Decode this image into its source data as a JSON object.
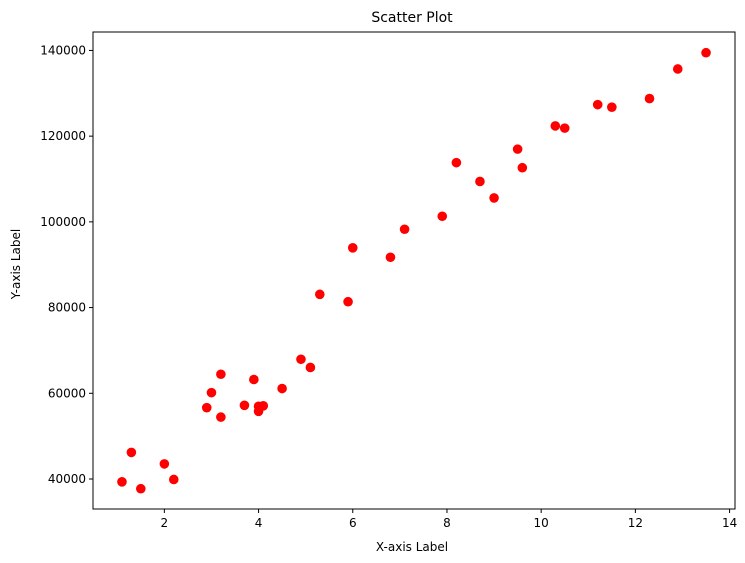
{
  "chart_data": {
    "type": "scatter",
    "title": "Scatter Plot",
    "xlabel": "X-axis Label",
    "ylabel": "Y-axis Label",
    "xlim": [
      0.485,
      14.115
    ],
    "ylim": [
      33000,
      144300
    ],
    "xticks": [
      2,
      4,
      6,
      8,
      10,
      12,
      14
    ],
    "yticks": [
      40000,
      60000,
      80000,
      100000,
      120000,
      140000
    ],
    "grid": false,
    "marker_color": "#ff0000",
    "points": [
      {
        "x": 1.1,
        "y": 39343
      },
      {
        "x": 1.3,
        "y": 46205
      },
      {
        "x": 1.5,
        "y": 37731
      },
      {
        "x": 2.0,
        "y": 43525
      },
      {
        "x": 2.2,
        "y": 39891
      },
      {
        "x": 2.9,
        "y": 56642
      },
      {
        "x": 3.0,
        "y": 60150
      },
      {
        "x": 3.2,
        "y": 54445
      },
      {
        "x": 3.2,
        "y": 64445
      },
      {
        "x": 3.7,
        "y": 57189
      },
      {
        "x": 3.9,
        "y": 63218
      },
      {
        "x": 4.0,
        "y": 55794
      },
      {
        "x": 4.0,
        "y": 56957
      },
      {
        "x": 4.1,
        "y": 57081
      },
      {
        "x": 4.5,
        "y": 61111
      },
      {
        "x": 4.9,
        "y": 67938
      },
      {
        "x": 5.1,
        "y": 66029
      },
      {
        "x": 5.3,
        "y": 83088
      },
      {
        "x": 5.9,
        "y": 81363
      },
      {
        "x": 6.0,
        "y": 93940
      },
      {
        "x": 6.8,
        "y": 91738
      },
      {
        "x": 7.1,
        "y": 98273
      },
      {
        "x": 7.9,
        "y": 101302
      },
      {
        "x": 8.2,
        "y": 113812
      },
      {
        "x": 8.7,
        "y": 109431
      },
      {
        "x": 9.0,
        "y": 105582
      },
      {
        "x": 9.5,
        "y": 116969
      },
      {
        "x": 9.6,
        "y": 112635
      },
      {
        "x": 10.3,
        "y": 122391
      },
      {
        "x": 10.5,
        "y": 121872
      },
      {
        "x": 11.2,
        "y": 127345
      },
      {
        "x": 11.5,
        "y": 126756
      },
      {
        "x": 12.3,
        "y": 128765
      },
      {
        "x": 12.9,
        "y": 135675
      },
      {
        "x": 13.5,
        "y": 139465
      }
    ]
  }
}
